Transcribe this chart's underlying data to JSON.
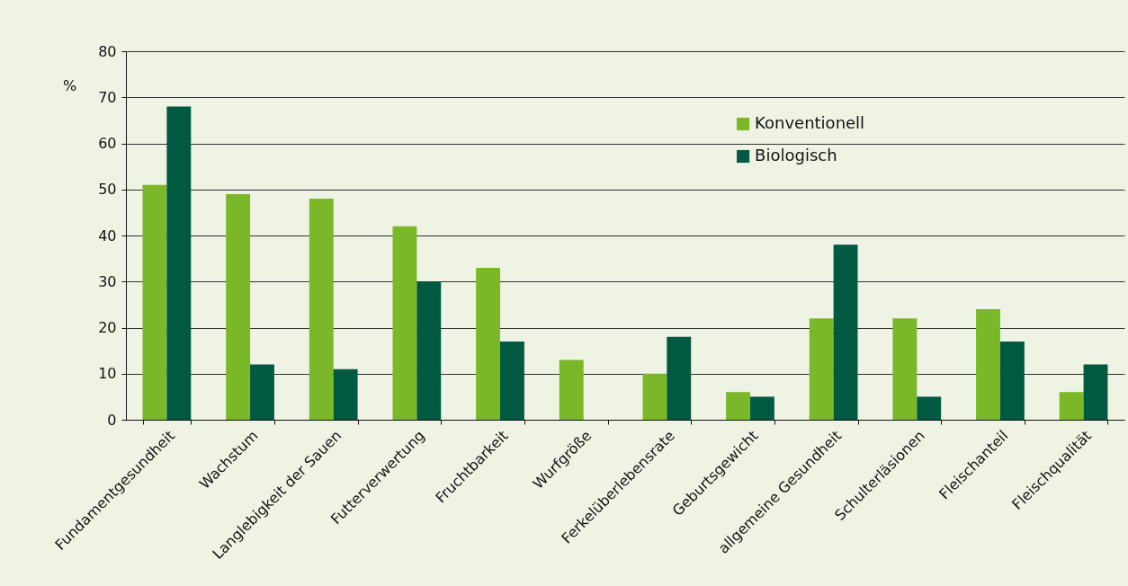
{
  "chart_data": {
    "type": "bar",
    "ylabel": "%",
    "categories": [
      "Fundamentgesundheit",
      "Wachstum",
      "Langlebigkeit der Sauen",
      "Futterverwertung",
      "Fruchtbarkeit",
      "Wurfgröße",
      "Ferkelüberlebensrate",
      "Geburtsgewicht",
      "allgemeine Gesundheit",
      "Schulterläsionen",
      "Fleischanteil",
      "Fleischqualität"
    ],
    "series": [
      {
        "name": "Konventionell",
        "color": "#7ab829",
        "values": [
          51,
          49,
          48,
          42,
          33,
          13,
          10,
          6,
          22,
          22,
          24,
          6
        ]
      },
      {
        "name": "Biologisch",
        "color": "#005a41",
        "values": [
          68,
          12,
          11,
          30,
          17,
          null,
          18,
          5,
          38,
          5,
          17,
          12
        ]
      }
    ],
    "ylim": [
      0,
      80
    ],
    "yticks": [
      0,
      10,
      20,
      30,
      40,
      50,
      60,
      70,
      80
    ],
    "grid": "y",
    "legend": "top right"
  }
}
